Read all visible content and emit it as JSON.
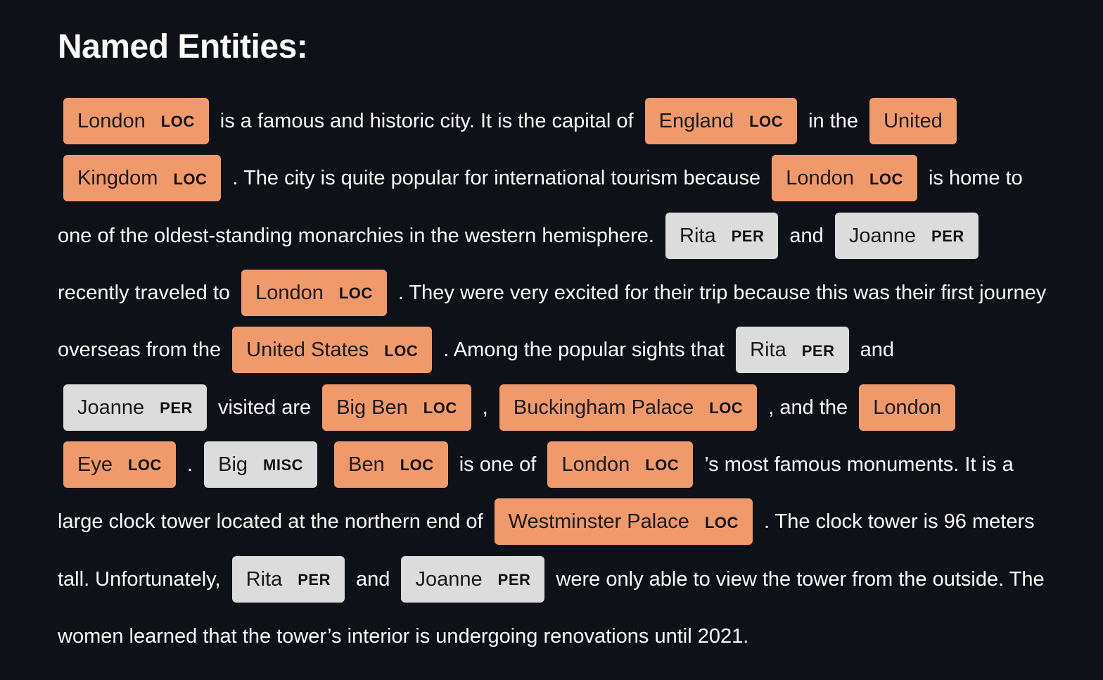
{
  "title": "Named Entities:",
  "segments": [
    {
      "type": "entity",
      "text": "London",
      "label": "LOC"
    },
    {
      "type": "text",
      "text": "is a famous and historic city. It is the capital of"
    },
    {
      "type": "entity",
      "text": "England",
      "label": "LOC"
    },
    {
      "type": "text",
      "text": "in the"
    },
    {
      "type": "entity",
      "text": "United Kingdom",
      "label": "LOC"
    },
    {
      "type": "text",
      "text": ". The city is quite popular for international tourism because"
    },
    {
      "type": "entity",
      "text": "London",
      "label": "LOC"
    },
    {
      "type": "text",
      "text": "is home to one of the oldest-standing monarchies in the western hemisphere."
    },
    {
      "type": "entity",
      "text": "Rita",
      "label": "PER"
    },
    {
      "type": "text",
      "text": "and"
    },
    {
      "type": "entity",
      "text": "Joanne",
      "label": "PER"
    },
    {
      "type": "text",
      "text": "recently traveled to"
    },
    {
      "type": "entity",
      "text": "London",
      "label": "LOC"
    },
    {
      "type": "text",
      "text": ". They were very excited for their trip because this was their first journey overseas from the"
    },
    {
      "type": "entity",
      "text": "United States",
      "label": "LOC"
    },
    {
      "type": "text",
      "text": ". Among the popular sights that"
    },
    {
      "type": "entity",
      "text": "Rita",
      "label": "PER"
    },
    {
      "type": "text",
      "text": "and"
    },
    {
      "type": "entity",
      "text": "Joanne",
      "label": "PER"
    },
    {
      "type": "text",
      "text": "visited are"
    },
    {
      "type": "entity",
      "text": "Big Ben",
      "label": "LOC"
    },
    {
      "type": "text",
      "text": ","
    },
    {
      "type": "entity",
      "text": "Buckingham Palace",
      "label": "LOC"
    },
    {
      "type": "text",
      "text": ", and the"
    },
    {
      "type": "entity",
      "text": "London Eye",
      "label": "LOC"
    },
    {
      "type": "text",
      "text": "."
    },
    {
      "type": "entity",
      "text": "Big",
      "label": "MISC"
    },
    {
      "type": "entity",
      "text": "Ben",
      "label": "LOC"
    },
    {
      "type": "text",
      "text": "is one of"
    },
    {
      "type": "entity",
      "text": "London",
      "label": "LOC"
    },
    {
      "type": "text",
      "text": "’s most famous monuments. It is a large clock tower located at the northern end of"
    },
    {
      "type": "entity",
      "text": "Westminster Palace",
      "label": "LOC"
    },
    {
      "type": "text",
      "text": ". The clock tower is 96 meters tall. Unfortunately,"
    },
    {
      "type": "entity",
      "text": "Rita",
      "label": "PER"
    },
    {
      "type": "text",
      "text": "and"
    },
    {
      "type": "entity",
      "text": "Joanne",
      "label": "PER"
    },
    {
      "type": "text",
      "text": "were only able to view the tower from the outside. The women learned that the tower’s interior is undergoing renovations until 2021."
    }
  ],
  "colors": {
    "background": "#0e1117",
    "text": "#fafafa",
    "LOC": "#f09a6c",
    "PER": "#dcdcdc",
    "MISC": "#dcdcdc"
  }
}
